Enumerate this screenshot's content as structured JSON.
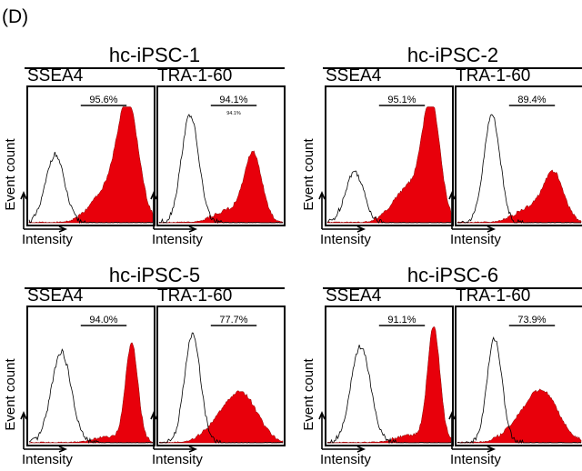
{
  "panel_label": "(D)",
  "chart_data": {
    "type": "histogram",
    "x_label": "Intensity",
    "y_label": "Event count",
    "colors": {
      "sample_fill": "#e8000b",
      "control_line": "#000000"
    },
    "groups": [
      {
        "title": "hc-iPSC-1",
        "plots": [
          {
            "marker": "SSEA4",
            "percent": "95.6%",
            "extra_text": "",
            "control": {
              "center": 0.21,
              "width": 0.075,
              "height": 0.6
            },
            "sample": {
              "center": 0.8,
              "width": 0.085,
              "height": 1.0,
              "shoulder": 0.25
            }
          },
          {
            "marker": "TRA-1-60",
            "percent": "94.1%",
            "extra_text": "94.1%",
            "control": {
              "center": 0.25,
              "width": 0.07,
              "height": 0.95
            },
            "sample": {
              "center": 0.76,
              "width": 0.07,
              "height": 0.58,
              "shoulder": 0.1
            }
          }
        ]
      },
      {
        "title": "hc-iPSC-2",
        "plots": [
          {
            "marker": "SSEA4",
            "percent": "95.1%",
            "extra_text": "",
            "control": {
              "center": 0.22,
              "width": 0.075,
              "height": 0.45
            },
            "sample": {
              "center": 0.84,
              "width": 0.07,
              "height": 1.0,
              "shoulder": 0.3
            }
          },
          {
            "marker": "TRA-1-60",
            "percent": "89.4%",
            "extra_text": "",
            "control": {
              "center": 0.28,
              "width": 0.065,
              "height": 0.95
            },
            "sample": {
              "center": 0.78,
              "width": 0.08,
              "height": 0.4,
              "shoulder": 0.12
            }
          }
        ]
      },
      {
        "title": "hc-iPSC-5",
        "plots": [
          {
            "marker": "SSEA4",
            "percent": "94.0%",
            "extra_text": "",
            "control": {
              "center": 0.26,
              "width": 0.08,
              "height": 0.8
            },
            "sample": {
              "center": 0.83,
              "width": 0.05,
              "height": 0.85,
              "shoulder": 0.04
            }
          },
          {
            "marker": "TRA-1-60",
            "percent": "77.7%",
            "extra_text": "",
            "control": {
              "center": 0.27,
              "width": 0.065,
              "height": 0.95
            },
            "sample": {
              "center": 0.68,
              "width": 0.12,
              "height": 0.38,
              "shoulder": 0.15
            }
          }
        ]
      },
      {
        "title": "hc-iPSC-6",
        "plots": [
          {
            "marker": "SSEA4",
            "percent": "91.1%",
            "extra_text": "",
            "control": {
              "center": 0.27,
              "width": 0.08,
              "height": 0.85
            },
            "sample": {
              "center": 0.86,
              "width": 0.05,
              "height": 1.0,
              "shoulder": 0.05
            }
          },
          {
            "marker": "TRA-1-60",
            "percent": "73.9%",
            "extra_text": "",
            "control": {
              "center": 0.3,
              "width": 0.06,
              "height": 0.92
            },
            "sample": {
              "center": 0.7,
              "width": 0.12,
              "height": 0.4,
              "shoulder": 0.15
            }
          }
        ]
      }
    ]
  }
}
